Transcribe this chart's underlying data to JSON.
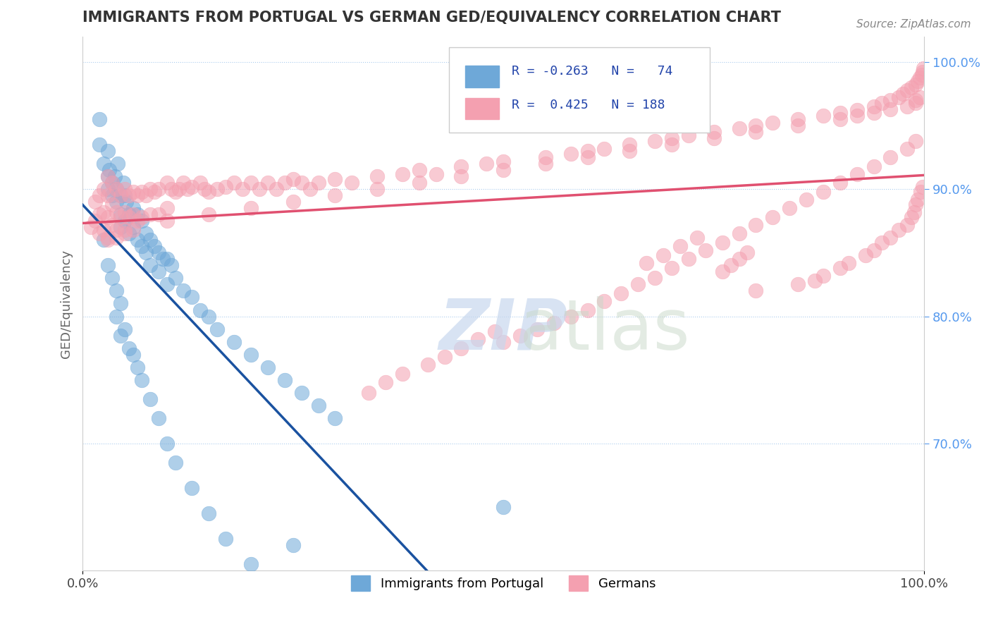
{
  "title": "IMMIGRANTS FROM PORTUGAL VS GERMAN GED/EQUIVALENCY CORRELATION CHART",
  "source_text": "Source: ZipAtlas.com",
  "xlabel": "",
  "ylabel": "GED/Equivalency",
  "xlim": [
    0.0,
    1.0
  ],
  "ylim_left": [
    0.6,
    1.02
  ],
  "x_tick_labels": [
    "0.0%",
    "100.0%"
  ],
  "y_tick_labels_right": [
    "70.0%",
    "80.0%",
    "90.0%",
    "100.0%"
  ],
  "legend_r1": "R = -0.263",
  "legend_n1": "N =  74",
  "legend_r2": "R =  0.425",
  "legend_n2": "N = 188",
  "blue_color": "#6EA8D8",
  "pink_color": "#F4A0B0",
  "line_blue": "#1A52A0",
  "line_pink": "#E05070",
  "line_dash": "#C0C0C0",
  "title_color": "#333333",
  "axis_label_color": "#555555",
  "right_tick_color": "#5599EE",
  "watermark_color": "#C8D8EE",
  "watermark_text": "ZIPatlas",
  "blue_scatter_x": [
    0.02,
    0.02,
    0.025,
    0.03,
    0.03,
    0.03,
    0.032,
    0.035,
    0.035,
    0.038,
    0.04,
    0.04,
    0.042,
    0.045,
    0.045,
    0.045,
    0.048,
    0.05,
    0.05,
    0.052,
    0.055,
    0.055,
    0.06,
    0.06,
    0.065,
    0.065,
    0.07,
    0.07,
    0.075,
    0.075,
    0.08,
    0.08,
    0.085,
    0.09,
    0.09,
    0.095,
    0.1,
    0.1,
    0.105,
    0.11,
    0.12,
    0.13,
    0.14,
    0.15,
    0.16,
    0.18,
    0.2,
    0.22,
    0.24,
    0.26,
    0.28,
    0.3,
    0.025,
    0.03,
    0.035,
    0.04,
    0.04,
    0.045,
    0.045,
    0.05,
    0.055,
    0.06,
    0.065,
    0.07,
    0.08,
    0.09,
    0.1,
    0.11,
    0.13,
    0.15,
    0.17,
    0.2,
    0.25,
    0.5
  ],
  "blue_scatter_y": [
    0.955,
    0.935,
    0.92,
    0.93,
    0.91,
    0.9,
    0.915,
    0.905,
    0.895,
    0.91,
    0.9,
    0.89,
    0.92,
    0.895,
    0.88,
    0.87,
    0.905,
    0.895,
    0.875,
    0.89,
    0.88,
    0.865,
    0.885,
    0.87,
    0.88,
    0.86,
    0.875,
    0.855,
    0.865,
    0.85,
    0.86,
    0.84,
    0.855,
    0.85,
    0.835,
    0.845,
    0.845,
    0.825,
    0.84,
    0.83,
    0.82,
    0.815,
    0.805,
    0.8,
    0.79,
    0.78,
    0.77,
    0.76,
    0.75,
    0.74,
    0.73,
    0.72,
    0.86,
    0.84,
    0.83,
    0.82,
    0.8,
    0.81,
    0.785,
    0.79,
    0.775,
    0.77,
    0.76,
    0.75,
    0.735,
    0.72,
    0.7,
    0.685,
    0.665,
    0.645,
    0.625,
    0.605,
    0.62,
    0.65
  ],
  "pink_scatter_x": [
    0.01,
    0.015,
    0.015,
    0.02,
    0.02,
    0.02,
    0.025,
    0.025,
    0.025,
    0.03,
    0.03,
    0.03,
    0.03,
    0.035,
    0.035,
    0.035,
    0.04,
    0.04,
    0.04,
    0.045,
    0.045,
    0.05,
    0.05,
    0.05,
    0.055,
    0.055,
    0.06,
    0.06,
    0.065,
    0.065,
    0.07,
    0.07,
    0.075,
    0.08,
    0.08,
    0.085,
    0.09,
    0.09,
    0.1,
    0.1,
    0.105,
    0.11,
    0.115,
    0.12,
    0.125,
    0.13,
    0.14,
    0.145,
    0.15,
    0.16,
    0.17,
    0.18,
    0.19,
    0.2,
    0.21,
    0.22,
    0.23,
    0.24,
    0.25,
    0.26,
    0.27,
    0.28,
    0.3,
    0.32,
    0.35,
    0.38,
    0.4,
    0.42,
    0.45,
    0.48,
    0.5,
    0.55,
    0.58,
    0.6,
    0.62,
    0.65,
    0.68,
    0.7,
    0.72,
    0.75,
    0.78,
    0.8,
    0.82,
    0.85,
    0.88,
    0.9,
    0.92,
    0.94,
    0.95,
    0.96,
    0.97,
    0.975,
    0.98,
    0.985,
    0.99,
    0.992,
    0.995,
    0.997,
    0.998,
    0.999,
    0.03,
    0.04,
    0.05,
    0.06,
    0.1,
    0.15,
    0.2,
    0.25,
    0.3,
    0.35,
    0.4,
    0.45,
    0.5,
    0.55,
    0.6,
    0.65,
    0.7,
    0.75,
    0.8,
    0.85,
    0.9,
    0.92,
    0.94,
    0.96,
    0.98,
    0.99,
    0.99,
    0.995,
    0.8,
    0.85,
    0.87,
    0.88,
    0.9,
    0.91,
    0.93,
    0.94,
    0.95,
    0.96,
    0.97,
    0.98,
    0.985,
    0.988,
    0.99,
    0.992,
    0.996,
    0.998,
    0.76,
    0.77,
    0.78,
    0.79,
    0.5,
    0.52,
    0.54,
    0.56,
    0.58,
    0.6,
    0.62,
    0.64,
    0.66,
    0.68,
    0.7,
    0.72,
    0.74,
    0.76,
    0.78,
    0.8,
    0.82,
    0.84,
    0.86,
    0.88,
    0.9,
    0.92,
    0.94,
    0.96,
    0.98,
    0.99,
    0.67,
    0.69,
    0.71,
    0.73,
    0.34,
    0.36,
    0.38,
    0.41,
    0.43,
    0.45,
    0.47,
    0.49
  ],
  "pink_scatter_y": [
    0.87,
    0.89,
    0.875,
    0.895,
    0.88,
    0.865,
    0.9,
    0.882,
    0.868,
    0.91,
    0.895,
    0.878,
    0.862,
    0.905,
    0.888,
    0.872,
    0.9,
    0.882,
    0.868,
    0.895,
    0.878,
    0.9,
    0.882,
    0.868,
    0.895,
    0.878,
    0.898,
    0.88,
    0.895,
    0.875,
    0.898,
    0.878,
    0.895,
    0.9,
    0.88,
    0.898,
    0.9,
    0.88,
    0.905,
    0.885,
    0.9,
    0.898,
    0.9,
    0.905,
    0.9,
    0.902,
    0.905,
    0.9,
    0.898,
    0.9,
    0.902,
    0.905,
    0.9,
    0.905,
    0.9,
    0.905,
    0.9,
    0.905,
    0.908,
    0.905,
    0.9,
    0.905,
    0.908,
    0.905,
    0.91,
    0.912,
    0.915,
    0.912,
    0.918,
    0.92,
    0.922,
    0.925,
    0.928,
    0.93,
    0.932,
    0.935,
    0.938,
    0.94,
    0.942,
    0.945,
    0.948,
    0.95,
    0.952,
    0.955,
    0.958,
    0.96,
    0.962,
    0.965,
    0.968,
    0.97,
    0.972,
    0.975,
    0.978,
    0.98,
    0.982,
    0.985,
    0.988,
    0.99,
    0.992,
    0.995,
    0.86,
    0.862,
    0.865,
    0.868,
    0.875,
    0.88,
    0.885,
    0.89,
    0.895,
    0.9,
    0.905,
    0.91,
    0.915,
    0.92,
    0.925,
    0.93,
    0.935,
    0.94,
    0.945,
    0.95,
    0.955,
    0.958,
    0.96,
    0.963,
    0.965,
    0.968,
    0.97,
    0.972,
    0.82,
    0.825,
    0.828,
    0.832,
    0.838,
    0.842,
    0.848,
    0.852,
    0.858,
    0.862,
    0.868,
    0.872,
    0.878,
    0.882,
    0.888,
    0.892,
    0.898,
    0.902,
    0.835,
    0.84,
    0.845,
    0.85,
    0.78,
    0.785,
    0.79,
    0.795,
    0.8,
    0.805,
    0.812,
    0.818,
    0.825,
    0.83,
    0.838,
    0.845,
    0.852,
    0.858,
    0.865,
    0.872,
    0.878,
    0.885,
    0.892,
    0.898,
    0.905,
    0.912,
    0.918,
    0.925,
    0.932,
    0.938,
    0.842,
    0.848,
    0.855,
    0.862,
    0.74,
    0.748,
    0.755,
    0.762,
    0.768,
    0.775,
    0.782,
    0.788
  ]
}
